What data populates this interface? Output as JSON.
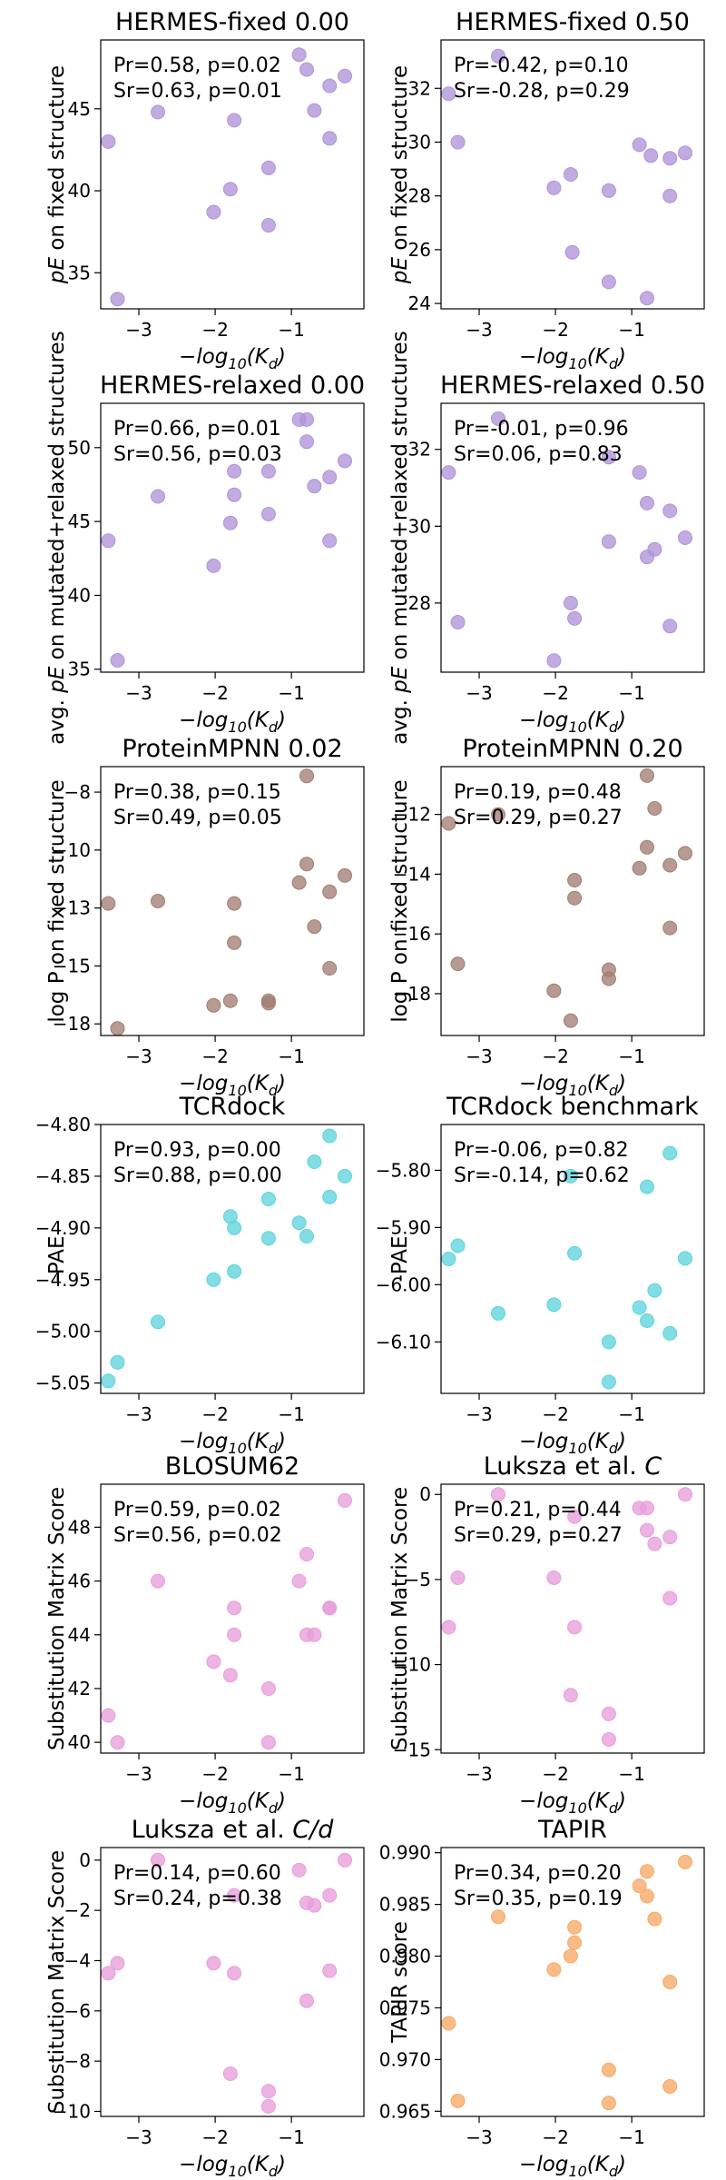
{
  "figure": {
    "xlabel_base": "−log",
    "xlabel_sub": "10",
    "xlabel_arg": "(K",
    "xlabel_argsub": "d",
    "xlabel_close": ")"
  },
  "chart_data": [
    {
      "type": "scatter",
      "title": "HERMES-fixed 0.00",
      "ylabel_prefix": "",
      "ylabel_italic": "pE",
      "ylabel": " on fixed structure",
      "stats_pr": "Pr=0.58, p=0.02",
      "stats_sr": "Sr=0.63, p=0.01",
      "color": "#b094d9",
      "xlim": [
        -3.5,
        -0.05
      ],
      "ylim": [
        32.8,
        49.2
      ],
      "xticks": [
        -3,
        -2,
        -1
      ],
      "yticks": [
        35,
        40,
        45
      ],
      "x": [
        -3.4,
        -3.28,
        -2.75,
        -2.02,
        -1.8,
        -1.75,
        -1.3,
        -1.3,
        -0.9,
        -0.8,
        -0.7,
        -0.5,
        -0.5,
        -0.3
      ],
      "y": [
        43.0,
        33.4,
        44.8,
        38.7,
        40.1,
        44.3,
        41.4,
        37.9,
        48.3,
        47.4,
        44.9,
        46.4,
        43.2,
        47.0
      ]
    },
    {
      "type": "scatter",
      "title": "HERMES-fixed 0.50",
      "ylabel_prefix": "",
      "ylabel_italic": "pE",
      "ylabel": " on fixed structure",
      "stats_pr": "Pr=-0.42, p=0.10",
      "stats_sr": "Sr=-0.28, p=0.29",
      "color": "#b094d9",
      "xlim": [
        -3.5,
        -0.05
      ],
      "ylim": [
        23.8,
        33.8
      ],
      "xticks": [
        -3,
        -2,
        -1
      ],
      "yticks": [
        24,
        26,
        28,
        30,
        32
      ],
      "x": [
        -3.4,
        -3.28,
        -2.75,
        -2.02,
        -1.8,
        -1.78,
        -1.3,
        -1.3,
        -0.9,
        -0.8,
        -0.75,
        -0.5,
        -0.5,
        -0.3
      ],
      "y": [
        31.8,
        30.0,
        33.2,
        28.3,
        28.8,
        25.9,
        28.2,
        24.8,
        29.9,
        24.2,
        29.5,
        28.0,
        29.4,
        29.6
      ]
    },
    {
      "type": "scatter",
      "title": "HERMES-relaxed 0.00",
      "ylabel_prefix": "avg. ",
      "ylabel_italic": "pE",
      "ylabel": " on mutated+relaxed structures",
      "stats_pr": "Pr=0.66, p=0.01",
      "stats_sr": "Sr=0.56, p=0.03",
      "color": "#b094d9",
      "xlim": [
        -3.5,
        -0.05
      ],
      "ylim": [
        34.8,
        53.0
      ],
      "xticks": [
        -3,
        -2,
        -1
      ],
      "yticks": [
        35,
        40,
        45,
        50
      ],
      "x": [
        -3.4,
        -3.28,
        -2.75,
        -2.02,
        -1.8,
        -1.75,
        -1.75,
        -1.3,
        -1.3,
        -0.9,
        -0.8,
        -0.8,
        -0.7,
        -0.5,
        -0.5,
        -0.3
      ],
      "y": [
        43.7,
        35.6,
        46.7,
        42.0,
        44.9,
        48.4,
        46.8,
        48.4,
        45.5,
        51.9,
        51.9,
        50.4,
        47.4,
        48.0,
        43.7,
        49.1
      ]
    },
    {
      "type": "scatter",
      "title": "HERMES-relaxed 0.50",
      "ylabel_prefix": "avg. ",
      "ylabel_italic": "pE",
      "ylabel": " on mutated+relaxed structures",
      "stats_pr": "Pr=-0.01, p=0.96",
      "stats_sr": "Sr=0.06, p=0.83",
      "color": "#b094d9",
      "xlim": [
        -3.5,
        -0.05
      ],
      "ylim": [
        26.2,
        33.2
      ],
      "xticks": [
        -3,
        -2,
        -1
      ],
      "yticks": [
        28,
        30,
        32
      ],
      "x": [
        -3.4,
        -3.28,
        -2.75,
        -2.02,
        -1.8,
        -1.75,
        -1.3,
        -1.3,
        -0.9,
        -0.8,
        -0.8,
        -0.7,
        -0.5,
        -0.5,
        -0.3
      ],
      "y": [
        31.4,
        27.5,
        32.8,
        26.5,
        28.0,
        27.6,
        31.8,
        29.6,
        31.4,
        29.2,
        30.6,
        29.4,
        30.4,
        27.4,
        29.7
      ]
    },
    {
      "type": "scatter",
      "title": "ProteinMPNN 0.02",
      "ylabel_prefix": "",
      "ylabel_italic": "",
      "ylabel": "log P on fixed structure",
      "stats_pr": "Pr=0.38, p=0.15",
      "stats_sr": "Sr=0.49, p=0.05",
      "color": "#a37e72",
      "xlim": [
        -3.5,
        -0.05
      ],
      "ylim": [
        -18.0,
        -6.4
      ],
      "xticks": [
        -3,
        -2,
        -1
      ],
      "yticks": [
        -17.5,
        -15.0,
        -12.5,
        -10.0,
        -7.5
      ],
      "x": [
        -3.4,
        -3.28,
        -2.75,
        -2.02,
        -1.8,
        -1.75,
        -1.75,
        -1.3,
        -1.3,
        -0.9,
        -0.8,
        -0.8,
        -0.7,
        -0.5,
        -0.5,
        -0.3
      ],
      "y": [
        -12.3,
        -17.7,
        -12.2,
        -16.7,
        -16.5,
        -12.3,
        -14.0,
        -16.6,
        -16.5,
        -11.4,
        -10.6,
        -6.8,
        -13.3,
        -11.8,
        -15.1,
        -11.1
      ]
    },
    {
      "type": "scatter",
      "title": "ProteinMPNN 0.20",
      "ylabel_prefix": "",
      "ylabel_italic": "",
      "ylabel": "log P on fixed structure",
      "stats_pr": "Pr=0.19, p=0.48",
      "stats_sr": "Sr=0.29, p=0.27",
      "color": "#a37e72",
      "xlim": [
        -3.5,
        -0.05
      ],
      "ylim": [
        -19.4,
        -10.4
      ],
      "xticks": [
        -3,
        -2,
        -1
      ],
      "yticks": [
        -18,
        -16,
        -14,
        -12
      ],
      "x": [
        -3.4,
        -3.28,
        -2.75,
        -2.02,
        -1.8,
        -1.75,
        -1.75,
        -1.3,
        -1.3,
        -0.9,
        -0.8,
        -0.8,
        -0.7,
        -0.5,
        -0.5,
        -0.3
      ],
      "y": [
        -12.3,
        -17.0,
        -12.0,
        -17.9,
        -18.9,
        -14.8,
        -14.2,
        -17.2,
        -17.5,
        -13.8,
        -13.1,
        -10.7,
        -11.8,
        -13.7,
        -15.8,
        -13.3
      ]
    },
    {
      "type": "scatter",
      "title": "TCRdock",
      "ylabel_prefix": "",
      "ylabel_italic": "",
      "ylabel": "-PAE",
      "stats_pr": "Pr=0.93, p=0.00",
      "stats_sr": "Sr=0.88, p=0.00",
      "color": "#5fd4dd",
      "xlim": [
        -3.5,
        -0.05
      ],
      "ylim": [
        -5.06,
        -4.8
      ],
      "xticks": [
        -3,
        -2,
        -1
      ],
      "yticks": [
        -5.05,
        -5.0,
        -4.95,
        -4.9,
        -4.85,
        -4.8
      ],
      "x": [
        -3.4,
        -3.28,
        -2.75,
        -2.02,
        -1.8,
        -1.75,
        -1.75,
        -1.3,
        -1.3,
        -0.9,
        -0.8,
        -0.7,
        -0.5,
        -0.5,
        -0.3
      ],
      "y": [
        -5.048,
        -5.03,
        -4.991,
        -4.95,
        -4.889,
        -4.9,
        -4.942,
        -4.91,
        -4.872,
        -4.895,
        -4.908,
        -4.836,
        -4.811,
        -4.87,
        -4.85
      ]
    },
    {
      "type": "scatter",
      "title": "TCRdock benchmark",
      "ylabel_prefix": "",
      "ylabel_italic": "",
      "ylabel": "-PAE",
      "stats_pr": "Pr=-0.06, p=0.82",
      "stats_sr": "Sr=-0.14, p=0.62",
      "color": "#5fd4dd",
      "xlim": [
        -3.5,
        -0.05
      ],
      "ylim": [
        -6.19,
        -5.72
      ],
      "xticks": [
        -3,
        -2,
        -1
      ],
      "yticks": [
        -6.1,
        -6.0,
        -5.9,
        -5.8
      ],
      "x": [
        -3.4,
        -3.28,
        -2.75,
        -2.02,
        -1.8,
        -1.75,
        -1.3,
        -1.3,
        -0.9,
        -0.8,
        -0.8,
        -0.7,
        -0.5,
        -0.5,
        -0.3
      ],
      "y": [
        -5.955,
        -5.932,
        -6.05,
        -6.035,
        -5.81,
        -5.945,
        -6.1,
        -6.17,
        -6.04,
        -6.063,
        -5.829,
        -6.01,
        -5.77,
        -6.085,
        -5.954
      ]
    },
    {
      "type": "scatter",
      "title": "BLOSUM62",
      "ylabel_prefix": "",
      "ylabel_italic": "",
      "ylabel": "Substitution Matrix Score",
      "stats_pr": "Pr=0.59, p=0.02",
      "stats_sr": "Sr=0.56, p=0.02",
      "color": "#e89edb",
      "xlim": [
        -3.5,
        -0.05
      ],
      "ylim": [
        39.6,
        49.6
      ],
      "xticks": [
        -3,
        -2,
        -1
      ],
      "yticks": [
        40,
        42,
        44,
        46,
        48
      ],
      "x": [
        -3.4,
        -3.28,
        -2.75,
        -2.02,
        -1.8,
        -1.75,
        -1.75,
        -1.3,
        -1.3,
        -0.9,
        -0.8,
        -0.8,
        -0.7,
        -0.5,
        -0.5,
        -0.3
      ],
      "y": [
        41.0,
        40.0,
        46.0,
        43.0,
        42.5,
        45.0,
        44.0,
        40.0,
        42.0,
        46.0,
        47.0,
        44.0,
        44.0,
        45.0,
        45.0,
        49.0
      ]
    },
    {
      "type": "scatter",
      "title": "Luksza et al. ",
      "title_italic": "C",
      "ylabel_prefix": "",
      "ylabel_italic": "",
      "ylabel": "Substitution Matrix Score",
      "stats_pr": "Pr=0.21, p=0.44",
      "stats_sr": "Sr=0.29, p=0.27",
      "color": "#e89edb",
      "xlim": [
        -3.5,
        -0.05
      ],
      "ylim": [
        -15.2,
        0.6
      ],
      "xticks": [
        -3,
        -2,
        -1
      ],
      "yticks": [
        -15,
        -10,
        -5,
        0
      ],
      "x": [
        -3.4,
        -3.28,
        -2.75,
        -2.02,
        -1.8,
        -1.75,
        -1.75,
        -1.3,
        -1.3,
        -0.9,
        -0.8,
        -0.8,
        -0.7,
        -0.5,
        -0.5,
        -0.3
      ],
      "y": [
        -7.8,
        -4.9,
        0.0,
        -4.9,
        -11.8,
        -7.8,
        -1.3,
        -14.4,
        -12.9,
        -0.8,
        -2.1,
        -0.8,
        -2.9,
        -6.1,
        -2.5,
        0.0
      ]
    },
    {
      "type": "scatter",
      "title": "Luksza et al. ",
      "title_italic": "C/d",
      "ylabel_prefix": "",
      "ylabel_italic": "",
      "ylabel": "Substitution Matrix Score",
      "stats_pr": "Pr=0.14, p=0.60",
      "stats_sr": "Sr=0.24, p=0.38",
      "color": "#e89edb",
      "xlim": [
        -3.5,
        -0.05
      ],
      "ylim": [
        -10.2,
        0.5
      ],
      "xticks": [
        -3,
        -2,
        -1
      ],
      "yticks": [
        -10,
        -8,
        -6,
        -4,
        -2,
        0
      ],
      "x": [
        -3.4,
        -3.28,
        -2.75,
        -2.02,
        -1.8,
        -1.75,
        -1.75,
        -1.3,
        -1.3,
        -0.9,
        -0.8,
        -0.8,
        -0.7,
        -0.5,
        -0.5,
        -0.3
      ],
      "y": [
        -4.5,
        -4.1,
        0.0,
        -4.1,
        -8.5,
        -4.5,
        -1.4,
        -9.8,
        -9.2,
        -0.4,
        -5.6,
        -1.7,
        -1.8,
        -4.4,
        -1.4,
        0.0
      ]
    },
    {
      "type": "scatter",
      "title": "TAPIR",
      "ylabel_prefix": "",
      "ylabel_italic": "",
      "ylabel": "TAPIR score",
      "stats_pr": "Pr=0.34, p=0.20",
      "stats_sr": "Sr=0.35, p=0.19",
      "color": "#f7a967",
      "xlim": [
        -3.5,
        -0.05
      ],
      "ylim": [
        0.9645,
        0.9905
      ],
      "xticks": [
        -3,
        -2,
        -1
      ],
      "yticks": [
        0.965,
        0.97,
        0.975,
        0.98,
        0.985,
        0.99
      ],
      "x": [
        -3.4,
        -3.28,
        -2.75,
        -2.02,
        -1.8,
        -1.75,
        -1.75,
        -1.3,
        -1.3,
        -0.9,
        -0.8,
        -0.8,
        -0.7,
        -0.5,
        -0.5,
        -0.3
      ],
      "y": [
        0.9735,
        0.966,
        0.9838,
        0.9787,
        0.98,
        0.9828,
        0.9813,
        0.969,
        0.9658,
        0.9868,
        0.9882,
        0.9858,
        0.9836,
        0.9775,
        0.9674,
        0.9891
      ]
    }
  ]
}
